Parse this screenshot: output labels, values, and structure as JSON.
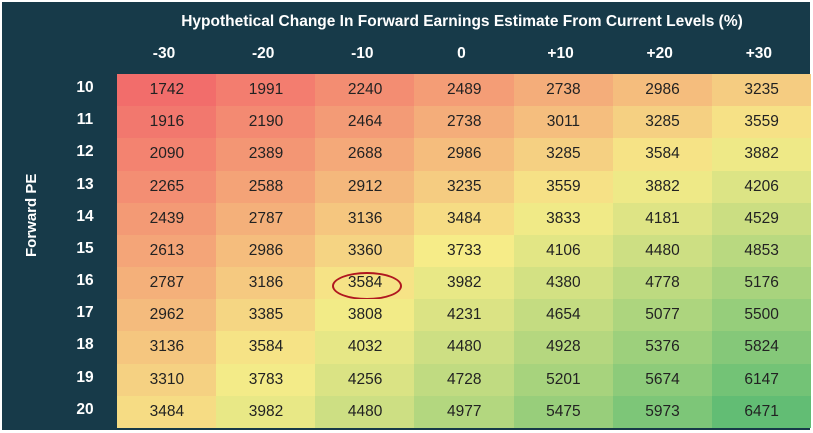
{
  "chart_data": {
    "type": "heatmap",
    "title": "Hypothetical Change In Forward Earnings Estimate From Current Levels (%)",
    "ylabel": "Forward PE",
    "x_categories": [
      "-30",
      "-20",
      "-10",
      "0",
      "+10",
      "+20",
      "+30"
    ],
    "y_categories": [
      "10",
      "11",
      "12",
      "13",
      "14",
      "15",
      "16",
      "17",
      "18",
      "19",
      "20"
    ],
    "values": [
      [
        1742,
        1991,
        2240,
        2489,
        2738,
        2986,
        3235
      ],
      [
        1916,
        2190,
        2464,
        2738,
        3011,
        3285,
        3559
      ],
      [
        2090,
        2389,
        2688,
        2986,
        3285,
        3584,
        3882
      ],
      [
        2265,
        2588,
        2912,
        3235,
        3559,
        3882,
        4206
      ],
      [
        2439,
        2787,
        3136,
        3484,
        3833,
        4181,
        4529
      ],
      [
        2613,
        2986,
        3360,
        3733,
        4106,
        4480,
        4853
      ],
      [
        2787,
        3186,
        3584,
        3982,
        4380,
        4778,
        5176
      ],
      [
        2962,
        3385,
        3808,
        4231,
        4654,
        5077,
        5500
      ],
      [
        3136,
        3584,
        4032,
        4480,
        4928,
        5376,
        5824
      ],
      [
        3310,
        3783,
        4256,
        4728,
        5201,
        5674,
        6147
      ],
      [
        3484,
        3982,
        4480,
        4977,
        5475,
        5973,
        6471
      ]
    ],
    "highlighted_cell": {
      "row": "16",
      "column": "-10",
      "value": 3584
    },
    "color_scale": {
      "low": "#f26d6b",
      "mid": "#f6ec88",
      "high": "#62bd74"
    },
    "background": "#173a49",
    "highlight_color": "#b0171f"
  }
}
